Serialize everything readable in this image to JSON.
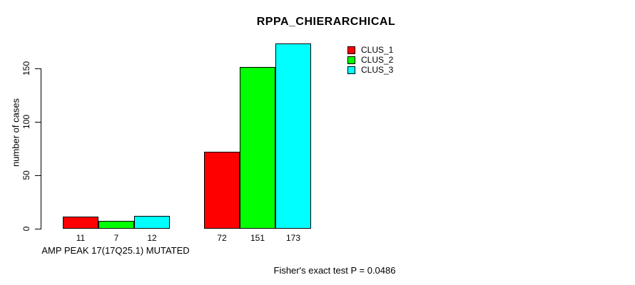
{
  "chart_data": {
    "type": "bar",
    "title": "RPPA_CHIERARCHICAL",
    "ylabel": "number of cases",
    "xlabel": "",
    "ylim": [
      0,
      175
    ],
    "yticks": [
      0,
      50,
      100,
      150
    ],
    "grid": false,
    "legend_position": "top-right",
    "series": [
      {
        "name": "CLUS_1",
        "color": "#ff0000"
      },
      {
        "name": "CLUS_2",
        "color": "#00ff00"
      },
      {
        "name": "CLUS_3",
        "color": "#00ffff"
      }
    ],
    "groups": [
      {
        "label": "AMP PEAK 17(17Q25.1) MUTATED",
        "values": [
          11,
          7,
          12
        ]
      },
      {
        "label": "",
        "values": [
          72,
          151,
          173
        ]
      }
    ],
    "bar_value_labels": [
      11,
      7,
      12,
      72,
      151,
      173
    ],
    "annotation": "Fisher's exact test P = 0.0486"
  }
}
